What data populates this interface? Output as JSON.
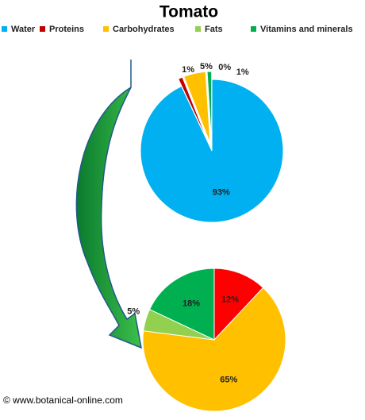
{
  "chart_data": [
    {
      "type": "pie",
      "title": "Tomato",
      "categories": [
        "Water",
        "Proteins",
        "Carbohydrates",
        "Fats",
        "Vitamins and minerals"
      ],
      "values": [
        93,
        1,
        5,
        0,
        1
      ],
      "value_labels": [
        "93%",
        "1%",
        "5%",
        "0%",
        "1%"
      ],
      "colors": [
        "#00b0f0",
        "#c00000",
        "#ffc000",
        "#92d050",
        "#00b050"
      ],
      "legend": "top"
    },
    {
      "type": "pie",
      "values": [
        12,
        65,
        5,
        18
      ],
      "value_labels": [
        "12%",
        "65%",
        "5%",
        "18%"
      ],
      "colors": [
        "#ff0000",
        "#ffc000",
        "#92d050",
        "#00b050"
      ]
    }
  ],
  "credit": "© www.botanical-online.com"
}
